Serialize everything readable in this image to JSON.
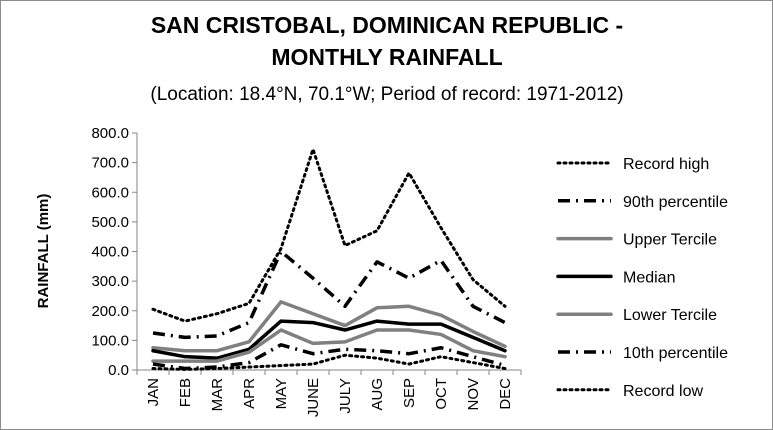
{
  "chart_data": {
    "type": "line",
    "title_line1": "SAN CRISTOBAL, DOMINICAN REPUBLIC -",
    "title_line2": "MONTHLY RAINFALL",
    "subtitle": "(Location: 18.4°N, 70.1°W; Period of record: 1971-2012)",
    "xlabel": "",
    "ylabel": "RAINFALL (mm)",
    "ylim": [
      0,
      800
    ],
    "yticks": [
      "0.0",
      "100.0",
      "200.0",
      "300.0",
      "400.0",
      "500.0",
      "600.0",
      "700.0",
      "800.0"
    ],
    "categories": [
      "JAN",
      "FEB",
      "MAR",
      "APR",
      "MAY",
      "JUNE",
      "JULY",
      "AUG",
      "SEP",
      "OCT",
      "NOV",
      "DEC"
    ],
    "grid": false,
    "legend_position": "right",
    "series": [
      {
        "name": "Record high",
        "color": "#000000",
        "style": "dotted",
        "values": [
          205,
          165,
          190,
          225,
          410,
          745,
          420,
          470,
          665,
          480,
          305,
          215
        ]
      },
      {
        "name": "90th percentile",
        "color": "#000000",
        "style": "dashdot",
        "values": [
          125,
          110,
          115,
          160,
          400,
          310,
          215,
          365,
          310,
          370,
          215,
          160
        ]
      },
      {
        "name": "Upper Tercile",
        "color": "#808080",
        "style": "solid",
        "values": [
          75,
          65,
          65,
          95,
          230,
          190,
          150,
          210,
          215,
          185,
          130,
          80
        ]
      },
      {
        "name": "Median",
        "color": "#000000",
        "style": "solid",
        "values": [
          65,
          45,
          40,
          70,
          165,
          160,
          135,
          165,
          155,
          155,
          110,
          65
        ]
      },
      {
        "name": "Lower Tercile",
        "color": "#808080",
        "style": "solid",
        "values": [
          30,
          30,
          30,
          60,
          135,
          90,
          95,
          135,
          135,
          120,
          65,
          45
        ]
      },
      {
        "name": "10th percentile",
        "color": "#000000",
        "style": "dashdot",
        "values": [
          20,
          5,
          10,
          25,
          85,
          55,
          70,
          65,
          55,
          75,
          45,
          15
        ]
      },
      {
        "name": "Record low",
        "color": "#000000",
        "style": "dotted",
        "values": [
          5,
          2,
          5,
          10,
          15,
          20,
          50,
          40,
          20,
          45,
          25,
          5
        ]
      }
    ]
  }
}
